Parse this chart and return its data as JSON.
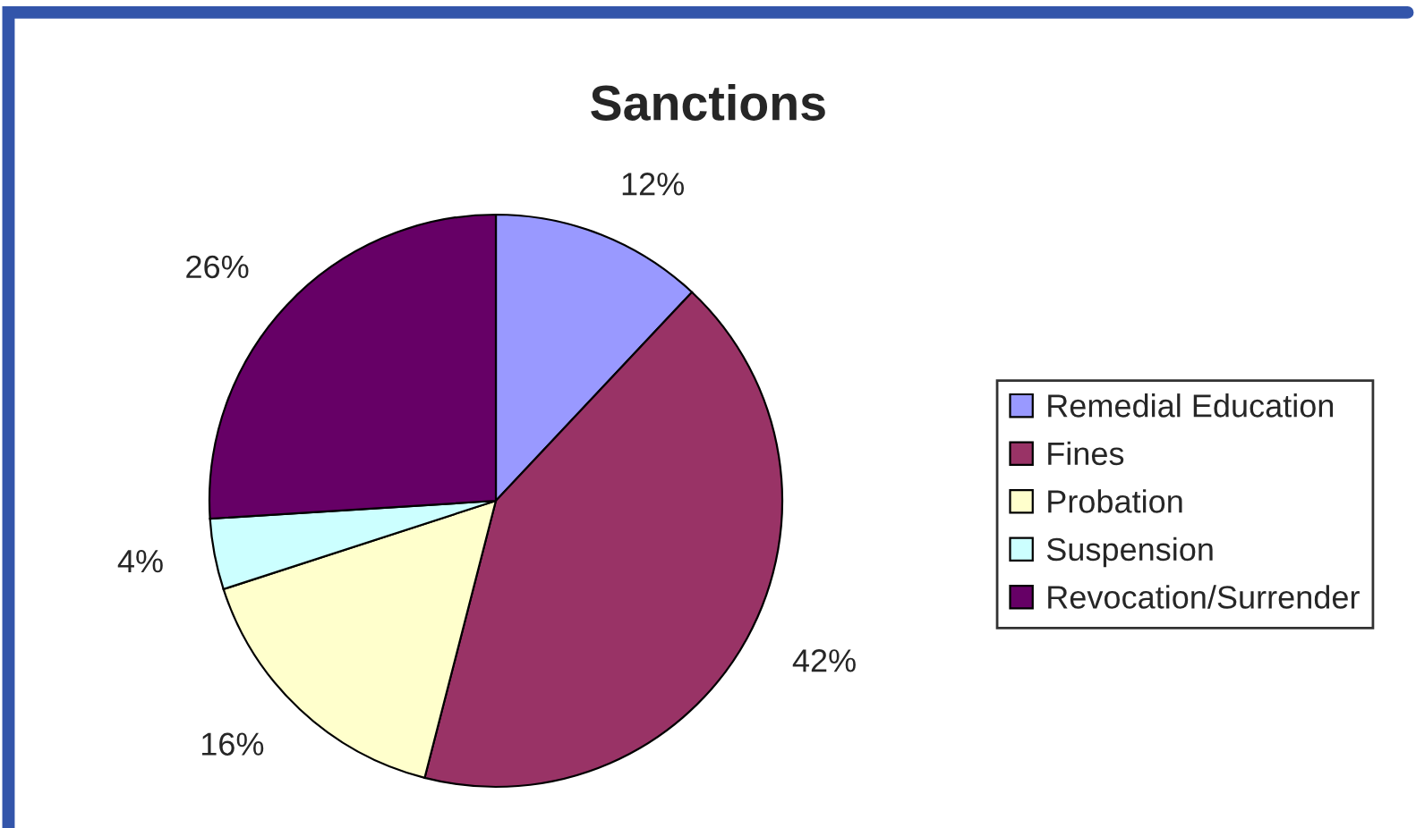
{
  "chart_data": {
    "type": "pie",
    "title": "Sanctions",
    "categories": [
      "Remedial Education",
      "Fines",
      "Probation",
      "Suspension",
      "Revocation/Surrender"
    ],
    "values": [
      12,
      42,
      16,
      4,
      26
    ],
    "colors": [
      "#9999ff",
      "#993366",
      "#ffffcc",
      "#ccffff",
      "#660066"
    ],
    "value_labels": [
      "12%",
      "42%",
      "16%",
      "4%",
      "26%"
    ],
    "legend": "right"
  }
}
